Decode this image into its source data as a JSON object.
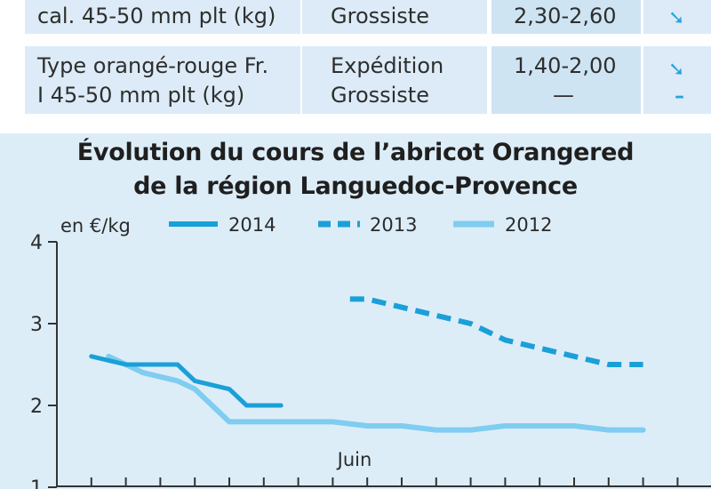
{
  "table": {
    "rows": [
      {
        "label_lines": [
          "cal. 45-50 mm plt (kg)"
        ],
        "market_lines": [
          "Grossiste"
        ],
        "price_lines": [
          "2,30-2,60"
        ],
        "trend_icons": [
          "arrow-down-right-icon"
        ]
      },
      {
        "label_lines": [
          "Type orangé-rouge Fr.",
          "I 45-50 mm plt (kg)"
        ],
        "market_lines": [
          "Expédition",
          "Grossiste"
        ],
        "price_lines": [
          "1,40-2,00",
          "—"
        ],
        "trend_icons": [
          "arrow-down-right-icon",
          "dash-icon"
        ]
      }
    ]
  },
  "chart_data": {
    "type": "line",
    "title": "Évolution du cours de l’abricot Orangered de la région Languedoc-Provence",
    "title_lines": [
      "Évolution du cours de l’abricot Orangered",
      "de la région Languedoc-Provence"
    ],
    "ylabel": "en €/kg",
    "ylim": [
      1,
      4
    ],
    "yticks": [
      1,
      2,
      3,
      4
    ],
    "xlabel_annotation": "Juin",
    "grid": false,
    "legend_position": "top",
    "colors": {
      "2014": "#1aa0d8",
      "2013": "#1aa0d8",
      "2012": "#7fcdf0",
      "axis": "#333333",
      "background": "#ddedf8"
    },
    "series": [
      {
        "name": "2014",
        "style": "solid",
        "points": [
          [
            1,
            2.6
          ],
          [
            2,
            2.5
          ],
          [
            3,
            2.5
          ],
          [
            3.5,
            2.5
          ],
          [
            4,
            2.3
          ],
          [
            5,
            2.2
          ],
          [
            5.5,
            2.0
          ],
          [
            6.5,
            2.0
          ]
        ]
      },
      {
        "name": "2013",
        "style": "dashed",
        "points": [
          [
            8.5,
            3.3
          ],
          [
            9,
            3.3
          ],
          [
            10,
            3.2
          ],
          [
            11,
            3.1
          ],
          [
            12,
            3.0
          ],
          [
            13,
            2.8
          ],
          [
            14,
            2.7
          ],
          [
            15,
            2.6
          ],
          [
            16,
            2.5
          ],
          [
            17,
            2.5
          ]
        ]
      },
      {
        "name": "2012",
        "style": "solid-light",
        "points": [
          [
            1.5,
            2.6
          ],
          [
            2,
            2.5
          ],
          [
            2.5,
            2.4
          ],
          [
            3,
            2.35
          ],
          [
            3.5,
            2.3
          ],
          [
            4,
            2.2
          ],
          [
            5,
            1.8
          ],
          [
            6,
            1.8
          ],
          [
            7,
            1.8
          ],
          [
            8,
            1.8
          ],
          [
            9,
            1.75
          ],
          [
            10,
            1.75
          ],
          [
            11,
            1.7
          ],
          [
            12,
            1.7
          ],
          [
            13,
            1.75
          ],
          [
            14,
            1.75
          ],
          [
            15,
            1.75
          ],
          [
            16,
            1.7
          ],
          [
            17,
            1.7
          ]
        ]
      }
    ]
  }
}
